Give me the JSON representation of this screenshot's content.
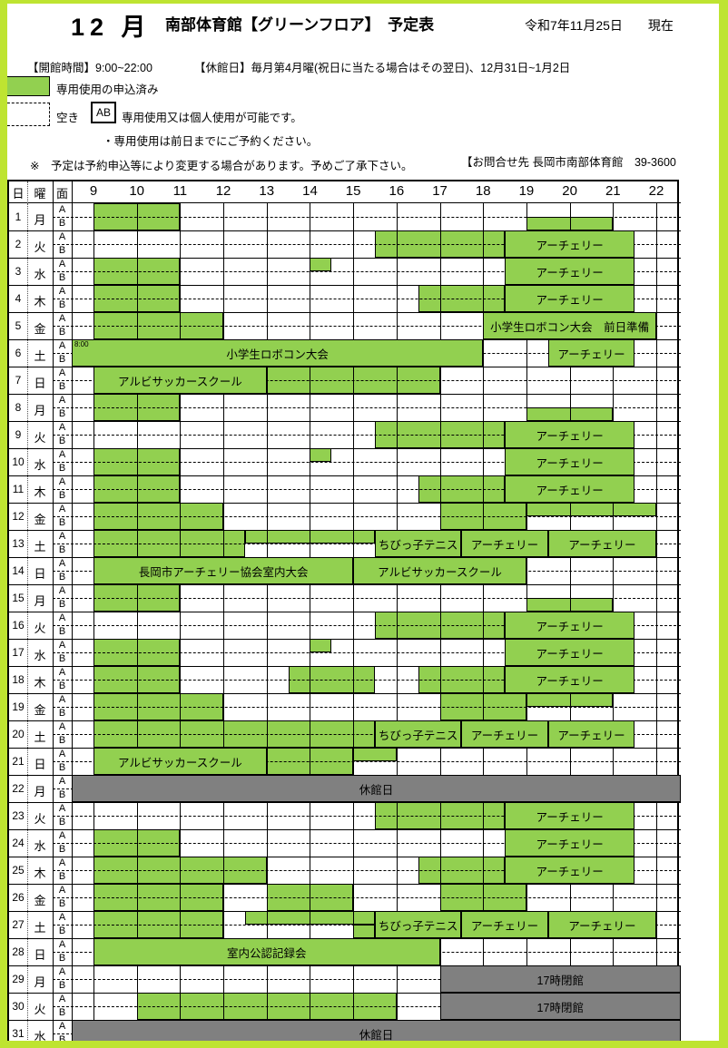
{
  "colors": {
    "reserved_green": "#92d050",
    "closed_gray": "#808080",
    "page_frame": "#bee431"
  },
  "header": {
    "month_title": "12 月",
    "main_title": "南部体育館【グリーンフロア】　予定表",
    "date_note": "令和7年11月25日　　現在",
    "hours_line": "【開館時間】9:00~22:00",
    "closed_line": "【休館日】毎月第4月曜(祝日に当たる場合はその翌日)、12月31日~1月2日"
  },
  "legend": {
    "reserved_label": "専用使用の申込済み",
    "empty_label": "空き",
    "ab_badge": "AB",
    "ab_text": "専用使用又は個人使用が可能です。",
    "booking_note": "・専用使用は前日までにご予約ください。",
    "disclaimer": "※　予定は予約申込等により変更する場合があります。予めご了承下さい。",
    "contact": "【お問合せ先 長岡市南部体育館　39-3600"
  },
  "table": {
    "col_day": "日",
    "col_weekday": "曜",
    "col_court": "面",
    "court_a": "A",
    "court_b": "B",
    "hours": [
      9,
      10,
      11,
      12,
      13,
      14,
      15,
      16,
      17,
      18,
      19,
      20,
      21,
      22
    ]
  },
  "days": [
    {
      "day": 1,
      "weekday": "月",
      "blocks": [
        {
          "start": 9,
          "end": 11,
          "rows": "AB"
        },
        {
          "start": 19,
          "end": 21,
          "rows": "B"
        }
      ]
    },
    {
      "day": 2,
      "weekday": "火",
      "blocks": [
        {
          "start": 15.5,
          "end": 18.5,
          "rows": "AB"
        },
        {
          "start": 18.5,
          "end": 21.5,
          "rows": "AB",
          "label": "アーチェリー"
        }
      ]
    },
    {
      "day": 3,
      "weekday": "水",
      "blocks": [
        {
          "start": 9,
          "end": 11,
          "rows": "AB"
        },
        {
          "start": 14,
          "end": 14.5,
          "rows": "A"
        },
        {
          "start": 18.5,
          "end": 21.5,
          "rows": "AB",
          "label": "アーチェリー"
        }
      ]
    },
    {
      "day": 4,
      "weekday": "木",
      "blocks": [
        {
          "start": 9,
          "end": 11,
          "rows": "AB"
        },
        {
          "start": 16.5,
          "end": 18.5,
          "rows": "AB"
        },
        {
          "start": 18.5,
          "end": 21.5,
          "rows": "AB",
          "label": "アーチェリー"
        }
      ]
    },
    {
      "day": 5,
      "weekday": "金",
      "blocks": [
        {
          "start": 9,
          "end": 12,
          "rows": "AB"
        },
        {
          "start": 18,
          "end": 22,
          "rows": "AB",
          "label": "小学生ロボコン大会　前日準備"
        }
      ]
    },
    {
      "day": 6,
      "weekday": "土",
      "blocks": [
        {
          "start": 8,
          "end": 18,
          "rows": "AB",
          "label": "小学生ロボコン大会",
          "time_note": "8:00"
        },
        {
          "start": 19.5,
          "end": 21.5,
          "rows": "AB",
          "label": "アーチェリー"
        }
      ]
    },
    {
      "day": 7,
      "weekday": "日",
      "blocks": [
        {
          "start": 9,
          "end": 13,
          "rows": "AB",
          "label": "アルビサッカースクール"
        },
        {
          "start": 13,
          "end": 17,
          "rows": "AB"
        }
      ]
    },
    {
      "day": 8,
      "weekday": "月",
      "blocks": [
        {
          "start": 9,
          "end": 11,
          "rows": "AB"
        },
        {
          "start": 19,
          "end": 21,
          "rows": "B"
        }
      ]
    },
    {
      "day": 9,
      "weekday": "火",
      "blocks": [
        {
          "start": 15.5,
          "end": 18.5,
          "rows": "AB"
        },
        {
          "start": 18.5,
          "end": 21.5,
          "rows": "AB",
          "label": "アーチェリー"
        }
      ]
    },
    {
      "day": 10,
      "weekday": "水",
      "blocks": [
        {
          "start": 9,
          "end": 11,
          "rows": "AB"
        },
        {
          "start": 14,
          "end": 14.5,
          "rows": "A"
        },
        {
          "start": 18.5,
          "end": 21.5,
          "rows": "AB",
          "label": "アーチェリー"
        }
      ]
    },
    {
      "day": 11,
      "weekday": "木",
      "blocks": [
        {
          "start": 9,
          "end": 11,
          "rows": "AB"
        },
        {
          "start": 16.5,
          "end": 18.5,
          "rows": "AB"
        },
        {
          "start": 18.5,
          "end": 21.5,
          "rows": "AB",
          "label": "アーチェリー"
        }
      ]
    },
    {
      "day": 12,
      "weekday": "金",
      "blocks": [
        {
          "start": 9,
          "end": 12,
          "rows": "AB"
        },
        {
          "start": 17,
          "end": 19,
          "rows": "AB"
        },
        {
          "start": 19,
          "end": 22,
          "rows": "A"
        }
      ]
    },
    {
      "day": 13,
      "weekday": "土",
      "blocks": [
        {
          "start": 9,
          "end": 12.5,
          "rows": "AB"
        },
        {
          "start": 12.5,
          "end": 15.5,
          "rows": "A"
        },
        {
          "start": 15.5,
          "end": 17.5,
          "rows": "AB",
          "label": "ちびっ子テニス"
        },
        {
          "start": 17.5,
          "end": 19.5,
          "rows": "AB",
          "label": "アーチェリー"
        },
        {
          "start": 19.5,
          "end": 22,
          "rows": "AB",
          "label": "アーチェリー"
        }
      ]
    },
    {
      "day": 14,
      "weekday": "日",
      "blocks": [
        {
          "start": 9,
          "end": 15,
          "rows": "AB",
          "label": "長岡市アーチェリー協会室内大会"
        },
        {
          "start": 15,
          "end": 19,
          "rows": "AB",
          "label": "アルビサッカースクール"
        }
      ]
    },
    {
      "day": 15,
      "weekday": "月",
      "blocks": [
        {
          "start": 9,
          "end": 11,
          "rows": "AB"
        },
        {
          "start": 19,
          "end": 21,
          "rows": "B"
        }
      ]
    },
    {
      "day": 16,
      "weekday": "火",
      "blocks": [
        {
          "start": 15.5,
          "end": 18.5,
          "rows": "AB"
        },
        {
          "start": 18.5,
          "end": 21.5,
          "rows": "AB",
          "label": "アーチェリー"
        }
      ]
    },
    {
      "day": 17,
      "weekday": "水",
      "blocks": [
        {
          "start": 9,
          "end": 11,
          "rows": "AB"
        },
        {
          "start": 14,
          "end": 14.5,
          "rows": "A"
        },
        {
          "start": 18.5,
          "end": 21.5,
          "rows": "AB",
          "label": "アーチェリー"
        }
      ]
    },
    {
      "day": 18,
      "weekday": "木",
      "blocks": [
        {
          "start": 9,
          "end": 11,
          "rows": "AB"
        },
        {
          "start": 13.5,
          "end": 15.5,
          "rows": "AB"
        },
        {
          "start": 16.5,
          "end": 18.5,
          "rows": "AB"
        },
        {
          "start": 18.5,
          "end": 21.5,
          "rows": "AB",
          "label": "アーチェリー"
        }
      ]
    },
    {
      "day": 19,
      "weekday": "金",
      "blocks": [
        {
          "start": 9,
          "end": 12,
          "rows": "AB"
        },
        {
          "start": 17,
          "end": 19,
          "rows": "AB"
        },
        {
          "start": 19,
          "end": 21,
          "rows": "A"
        }
      ]
    },
    {
      "day": 20,
      "weekday": "土",
      "blocks": [
        {
          "start": 9,
          "end": 15.5,
          "rows": "AB"
        },
        {
          "start": 15.5,
          "end": 17.5,
          "rows": "AB",
          "label": "ちびっ子テニス"
        },
        {
          "start": 17.5,
          "end": 19.5,
          "rows": "AB",
          "label": "アーチェリー"
        },
        {
          "start": 19.5,
          "end": 21.5,
          "rows": "AB",
          "label": "アーチェリー"
        }
      ]
    },
    {
      "day": 21,
      "weekday": "日",
      "blocks": [
        {
          "start": 9,
          "end": 13,
          "rows": "AB",
          "label": "アルビサッカースクール"
        },
        {
          "start": 13,
          "end": 15,
          "rows": "AB"
        },
        {
          "start": 15,
          "end": 16,
          "rows": "A"
        }
      ]
    },
    {
      "day": 22,
      "weekday": "月",
      "blocks": [
        {
          "start": 8,
          "end": 22.5,
          "rows": "AB",
          "label": "休館日",
          "closed": true
        }
      ]
    },
    {
      "day": 23,
      "weekday": "火",
      "blocks": [
        {
          "start": 15.5,
          "end": 18.5,
          "rows": "AB"
        },
        {
          "start": 18.5,
          "end": 21.5,
          "rows": "AB",
          "label": "アーチェリー"
        }
      ]
    },
    {
      "day": 24,
      "weekday": "水",
      "blocks": [
        {
          "start": 9,
          "end": 11,
          "rows": "AB"
        },
        {
          "start": 18.5,
          "end": 21.5,
          "rows": "AB",
          "label": "アーチェリー"
        }
      ]
    },
    {
      "day": 25,
      "weekday": "木",
      "blocks": [
        {
          "start": 9,
          "end": 13,
          "rows": "AB"
        },
        {
          "start": 16.5,
          "end": 18.5,
          "rows": "AB"
        },
        {
          "start": 18.5,
          "end": 21.5,
          "rows": "AB",
          "label": "アーチェリー"
        }
      ]
    },
    {
      "day": 26,
      "weekday": "金",
      "blocks": [
        {
          "start": 9,
          "end": 12,
          "rows": "AB"
        },
        {
          "start": 13,
          "end": 15,
          "rows": "AB"
        },
        {
          "start": 17,
          "end": 19,
          "rows": "AB"
        }
      ]
    },
    {
      "day": 27,
      "weekday": "土",
      "blocks": [
        {
          "start": 9,
          "end": 12,
          "rows": "AB"
        },
        {
          "start": 12.5,
          "end": 15.5,
          "rows": "A"
        },
        {
          "start": 15,
          "end": 15.5,
          "rows": "B"
        },
        {
          "start": 15.5,
          "end": 17.5,
          "rows": "AB",
          "label": "ちびっ子テニス"
        },
        {
          "start": 17.5,
          "end": 19.5,
          "rows": "AB",
          "label": "アーチェリー"
        },
        {
          "start": 19.5,
          "end": 22,
          "rows": "AB",
          "label": "アーチェリー"
        }
      ]
    },
    {
      "day": 28,
      "weekday": "日",
      "blocks": [
        {
          "start": 9,
          "end": 17,
          "rows": "AB",
          "label": "室内公認記録会"
        }
      ]
    },
    {
      "day": 29,
      "weekday": "月",
      "blocks": [
        {
          "start": 17,
          "end": 22.5,
          "rows": "AB",
          "label": "17時閉館",
          "closed": true
        }
      ]
    },
    {
      "day": 30,
      "weekday": "火",
      "blocks": [
        {
          "start": 10,
          "end": 16,
          "rows": "AB"
        },
        {
          "start": 17,
          "end": 22.5,
          "rows": "AB",
          "label": "17時閉館",
          "closed": true
        }
      ]
    },
    {
      "day": 31,
      "weekday": "水",
      "blocks": [
        {
          "start": 8,
          "end": 22.5,
          "rows": "AB",
          "label": "休館日",
          "closed": true
        }
      ]
    }
  ]
}
